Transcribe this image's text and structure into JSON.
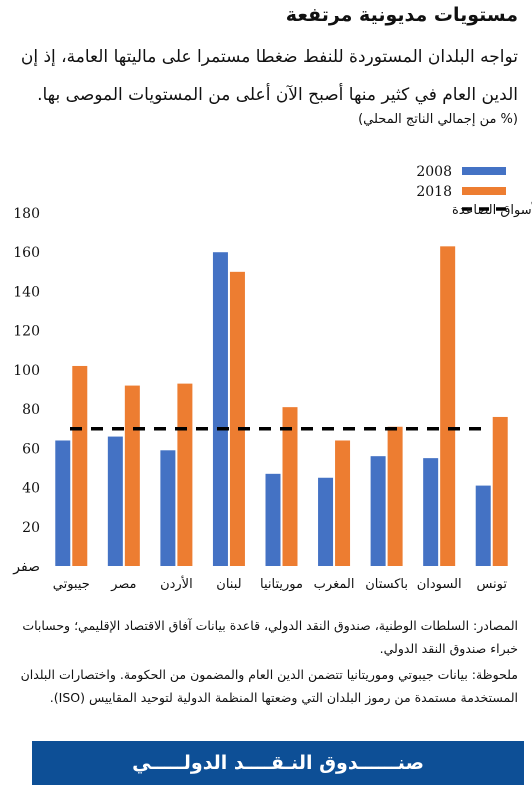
{
  "header": {
    "title": "مستويات مديونية مرتفعة",
    "subtitle": "تواجه البلدان المستوردة للنفط ضغطا مستمرا على ماليتها العامة، إذ إن الدين العام في كثير منها أصبح الآن أعلى من المستويات الموصى بها.",
    "unit": "(% من إجمالي الناتج المحلي)"
  },
  "colors": {
    "series_2008": "#4472c4",
    "series_2018": "#ed7d31",
    "benchmark": "#000000",
    "footer": "#0d4f96"
  },
  "chart_data": {
    "type": "bar",
    "categories": [
      "جيبوتي",
      "مصر",
      "الأردن",
      "لبنان",
      "موريتانيا",
      "المغرب",
      "باكستان",
      "السودان",
      "تونس"
    ],
    "series": [
      {
        "name": "2008",
        "values": [
          64,
          66,
          59,
          160,
          47,
          45,
          56,
          55,
          41
        ]
      },
      {
        "name": "2018",
        "values": [
          102,
          92,
          93,
          150,
          81,
          64,
          71,
          163,
          76
        ]
      }
    ],
    "benchmark": {
      "name": "المستوى المعياري لاقتصادات الأسواق الصاعدة",
      "value": 70
    },
    "yticks": [
      "صفر",
      "20",
      "40",
      "60",
      "80",
      "100",
      "120",
      "140",
      "160",
      "180"
    ],
    "ylim": [
      0,
      180
    ],
    "legend_placement": "top-right",
    "grid": false
  },
  "notes": {
    "sources": "المصادر: السلطات الوطنية، صندوق النقد الدولي، قاعدة بيانات آفاق الاقتصاد الإقليمي؛ وحسابات خبراء صندوق النقد الدولي.",
    "note": "ملحوظة: بيانات جيبوتي وموريتانيا تتضمن الدين العام والمضمون من الحكومة. واختصارات البلدان المستخدمة مستمدة من رموز البلدان التي وضعتها المنظمة الدولية لتوحيد المقاييس (ISO)."
  },
  "footer": {
    "label": "صنــــــدوق النـقــــد الدولـــــي"
  }
}
